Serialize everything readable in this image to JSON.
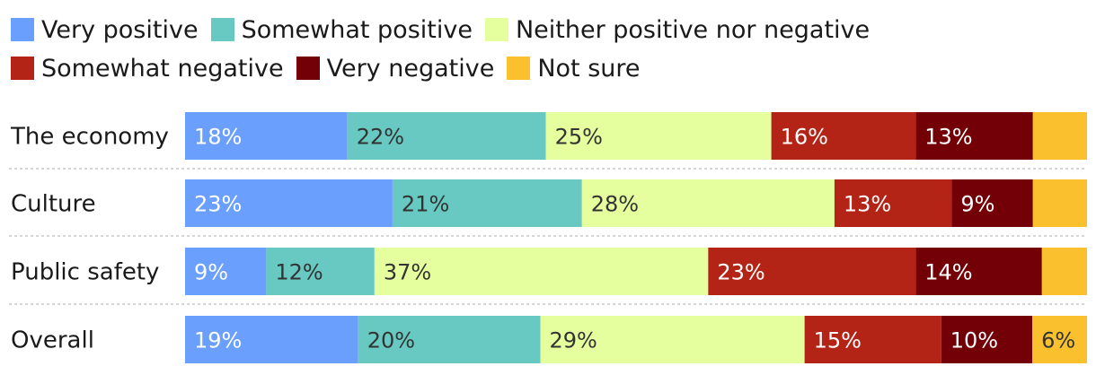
{
  "chart_data": {
    "type": "bar",
    "orientation": "horizontal",
    "stacked": true,
    "categories": [
      "The economy",
      "Culture",
      "Public safety",
      "Overall"
    ],
    "series": [
      {
        "name": "Very positive",
        "color": "#6a9ffd",
        "values": [
          18,
          23,
          9,
          19
        ],
        "labels": [
          "18%",
          "23%",
          "9%",
          "19%"
        ]
      },
      {
        "name": "Somewhat positive",
        "color": "#67c9c2",
        "values": [
          22,
          21,
          12,
          20
        ],
        "labels": [
          "22%",
          "21%",
          "12%",
          "20%"
        ]
      },
      {
        "name": "Neither positive nor negative",
        "color": "#e5ff9f",
        "values": [
          25,
          28,
          37,
          29
        ],
        "labels": [
          "25%",
          "28%",
          "37%",
          "29%"
        ]
      },
      {
        "name": "Somewhat negative",
        "color": "#b42416",
        "values": [
          16,
          13,
          23,
          15
        ],
        "labels": [
          "16%",
          "13%",
          "23%",
          "15%"
        ]
      },
      {
        "name": "Very negative",
        "color": "#730006",
        "values": [
          13,
          9,
          14,
          10
        ],
        "labels": [
          "13%",
          "9%",
          "14%",
          "10%"
        ]
      },
      {
        "name": "Not sure",
        "color": "#fbc02d",
        "values": [
          6,
          6,
          5,
          6
        ],
        "labels": [
          "",
          "",
          "",
          "6%"
        ]
      }
    ],
    "xlim": [
      0,
      100
    ],
    "legend_position": "top",
    "grid": false
  }
}
